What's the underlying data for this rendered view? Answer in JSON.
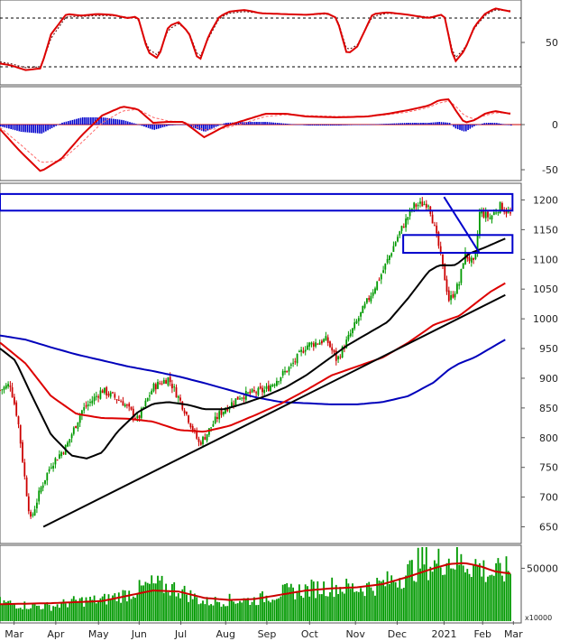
{
  "chart_data": [
    {
      "panel": "stochastic",
      "type": "line",
      "ylim": [
        0,
        100
      ],
      "y_ticks": [
        "50"
      ],
      "reference_lines": [
        20,
        80
      ],
      "colors": {
        "k": "#dd0000",
        "d": "#550000",
        "ref": "#000000"
      },
      "x": [
        0,
        0.02,
        0.05,
        0.08,
        0.1,
        0.13,
        0.16,
        0.19,
        0.22,
        0.25,
        0.27,
        0.29,
        0.31,
        0.33,
        0.35,
        0.37,
        0.39,
        0.41,
        0.43,
        0.45,
        0.48,
        0.51,
        0.55,
        0.6,
        0.64,
        0.66,
        0.68,
        0.7,
        0.73,
        0.76,
        0.8,
        0.84,
        0.87,
        0.88,
        0.89,
        0.91,
        0.93,
        0.95,
        0.97,
        1.0
      ],
      "k": [
        24,
        22,
        16,
        18,
        60,
        85,
        83,
        85,
        84,
        80,
        82,
        38,
        30,
        70,
        75,
        62,
        25,
        60,
        82,
        88,
        90,
        86,
        85,
        84,
        86,
        80,
        35,
        45,
        85,
        87,
        84,
        80,
        85,
        55,
        25,
        40,
        70,
        85,
        92,
        88
      ],
      "d": [
        26,
        24,
        19,
        20,
        55,
        82,
        82,
        83,
        83,
        81,
        80,
        42,
        34,
        66,
        73,
        63,
        30,
        57,
        80,
        86,
        88,
        86,
        85,
        84,
        85,
        81,
        40,
        47,
        82,
        86,
        84,
        81,
        84,
        58,
        30,
        42,
        68,
        83,
        90,
        89
      ]
    },
    {
      "panel": "macd",
      "type": "line",
      "ylim": [
        -60,
        40
      ],
      "y_ticks": [
        "0",
        "-50"
      ],
      "colors": {
        "macd": "#dd0000",
        "signal": "#ff6666",
        "histogram": "#0000cc"
      },
      "x": [
        0,
        0.04,
        0.08,
        0.12,
        0.16,
        0.2,
        0.24,
        0.27,
        0.3,
        0.33,
        0.36,
        0.4,
        0.44,
        0.48,
        0.52,
        0.56,
        0.6,
        0.66,
        0.72,
        0.76,
        0.8,
        0.84,
        0.86,
        0.88,
        0.89,
        0.91,
        0.93,
        0.95,
        0.97,
        1.0
      ],
      "macd": [
        -5,
        -30,
        -52,
        -38,
        -12,
        10,
        20,
        17,
        2,
        3,
        3,
        -14,
        -2,
        5,
        12,
        12,
        9,
        8,
        9,
        12,
        16,
        21,
        27,
        28,
        18,
        2,
        5,
        12,
        15,
        12
      ],
      "signal": [
        -3,
        -22,
        -42,
        -40,
        -20,
        2,
        15,
        17,
        8,
        4,
        3,
        -6,
        -4,
        2,
        9,
        11,
        10,
        9,
        9,
        11,
        14,
        19,
        24,
        26,
        22,
        10,
        6,
        10,
        13,
        13
      ],
      "histogram": [
        -2,
        -8,
        -10,
        2,
        8,
        8,
        5,
        0,
        -6,
        -1,
        0,
        -8,
        2,
        3,
        3,
        1,
        -1,
        -1,
        0,
        1,
        2,
        2,
        3,
        2,
        -4,
        -8,
        -1,
        2,
        2,
        -1
      ]
    },
    {
      "panel": "price",
      "type": "candlestick",
      "ylim": [
        625,
        1225
      ],
      "y_ticks": [
        "650",
        "700",
        "750",
        "800",
        "850",
        "900",
        "950",
        "1000",
        "1050",
        "1100",
        "1150",
        "1200"
      ],
      "colors": {
        "up": "#009900",
        "down": "#cc0000",
        "ma_fast": "#dd0000",
        "ma_mid": "#000000",
        "ma_slow": "#0000bb",
        "trendline": "#000000",
        "boxes": "#0000cc"
      },
      "close_anchors": {
        "x": [
          0,
          0.02,
          0.035,
          0.05,
          0.06,
          0.08,
          0.1,
          0.13,
          0.16,
          0.2,
          0.24,
          0.27,
          0.3,
          0.33,
          0.36,
          0.39,
          0.4,
          0.43,
          0.47,
          0.52,
          0.57,
          0.6,
          0.64,
          0.66,
          0.69,
          0.72,
          0.75,
          0.78,
          0.81,
          0.84,
          0.86,
          0.88,
          0.9,
          0.91,
          0.93,
          0.94,
          0.96,
          0.98,
          1.0
        ],
        "y": [
          880,
          890,
          830,
          720,
          660,
          715,
          755,
          785,
          845,
          880,
          860,
          830,
          885,
          900,
          850,
          790,
          800,
          840,
          870,
          880,
          920,
          955,
          965,
          930,
          980,
          1030,
          1080,
          1140,
          1190,
          1195,
          1120,
          1030,
          1060,
          1110,
          1090,
          1180,
          1170,
          1190,
          1175
        ]
      },
      "ma_fast": {
        "x": [
          0,
          0.05,
          0.1,
          0.15,
          0.2,
          0.25,
          0.3,
          0.35,
          0.4,
          0.45,
          0.5,
          0.55,
          0.6,
          0.65,
          0.7,
          0.75,
          0.8,
          0.85,
          0.9,
          0.93,
          0.96,
          0.99
        ],
        "y": [
          960,
          925,
          870,
          840,
          833,
          832,
          827,
          813,
          810,
          820,
          838,
          857,
          880,
          905,
          920,
          935,
          960,
          990,
          1005,
          1025,
          1045,
          1060
        ]
      },
      "ma_mid": {
        "x": [
          0,
          0.03,
          0.06,
          0.1,
          0.14,
          0.17,
          0.2,
          0.23,
          0.27,
          0.3,
          0.33,
          0.37,
          0.4,
          0.44,
          0.48,
          0.52,
          0.56,
          0.6,
          0.64,
          0.68,
          0.72,
          0.76,
          0.8,
          0.84,
          0.86,
          0.88,
          0.89,
          0.9,
          0.92,
          0.95,
          0.99
        ],
        "y": [
          950,
          930,
          875,
          805,
          770,
          765,
          775,
          810,
          843,
          857,
          860,
          855,
          848,
          848,
          858,
          870,
          885,
          905,
          930,
          955,
          975,
          995,
          1035,
          1080,
          1090,
          1090,
          1090,
          1095,
          1110,
          1120,
          1135
        ]
      },
      "ma_slow": {
        "x": [
          0,
          0.05,
          0.1,
          0.15,
          0.2,
          0.25,
          0.3,
          0.35,
          0.4,
          0.45,
          0.5,
          0.55,
          0.6,
          0.65,
          0.7,
          0.75,
          0.8,
          0.85,
          0.88,
          0.9,
          0.93,
          0.96,
          0.99
        ],
        "y": [
          972,
          965,
          952,
          940,
          930,
          920,
          912,
          903,
          892,
          880,
          868,
          860,
          858,
          856,
          856,
          860,
          870,
          893,
          915,
          925,
          935,
          950,
          965
        ]
      },
      "trendlines": [
        {
          "x": [
            0.085,
            0.99
          ],
          "y": [
            650,
            1040
          ]
        },
        {
          "x": [
            0.87,
            0.94
          ],
          "y": [
            1205,
            1110
          ]
        }
      ],
      "boxes": [
        {
          "x": [
            0.0,
            0.99
          ],
          "y": [
            1182,
            1210
          ]
        },
        {
          "x": [
            0.79,
            0.99
          ],
          "y": [
            1111,
            1141
          ]
        }
      ]
    },
    {
      "panel": "volume",
      "type": "bar",
      "ylim": [
        0,
        70000
      ],
      "y_ticks": [
        "50000"
      ],
      "unit_label": "x10000",
      "colors": {
        "bars": "#009900",
        "ma": "#cc0000"
      },
      "volume_anchors": {
        "x": [
          0,
          0.05,
          0.1,
          0.15,
          0.2,
          0.25,
          0.3,
          0.35,
          0.4,
          0.45,
          0.5,
          0.55,
          0.6,
          0.65,
          0.7,
          0.75,
          0.8,
          0.83,
          0.85,
          0.87,
          0.9,
          0.93,
          0.96,
          1.0
        ],
        "y": [
          18000,
          15000,
          14000,
          19000,
          20000,
          26000,
          35000,
          30000,
          18000,
          20000,
          20000,
          27000,
          30000,
          33000,
          31000,
          35000,
          46000,
          58000,
          52000,
          60000,
          56000,
          54000,
          45000,
          48000
        ]
      },
      "ma": {
        "x": [
          0,
          0.1,
          0.2,
          0.25,
          0.3,
          0.35,
          0.4,
          0.45,
          0.5,
          0.55,
          0.6,
          0.65,
          0.7,
          0.75,
          0.8,
          0.85,
          0.88,
          0.91,
          0.94,
          0.97,
          1.0
        ],
        "y": [
          16000,
          17000,
          19000,
          24000,
          29000,
          28000,
          22000,
          20000,
          21000,
          25000,
          29000,
          31000,
          32000,
          35000,
          42000,
          50000,
          54000,
          55000,
          52000,
          47000,
          45000
        ]
      }
    }
  ],
  "x_axis": {
    "ticks": [
      "Mar",
      "Apr",
      "May",
      "Jun",
      "Jul",
      "Aug",
      "Sep",
      "Oct",
      "Nov",
      "Dec",
      "2021",
      "Feb",
      "Mar"
    ],
    "tick_positions": [
      0.027,
      0.107,
      0.189,
      0.267,
      0.347,
      0.433,
      0.512,
      0.594,
      0.682,
      0.762,
      0.852,
      0.926,
      0.985
    ]
  }
}
